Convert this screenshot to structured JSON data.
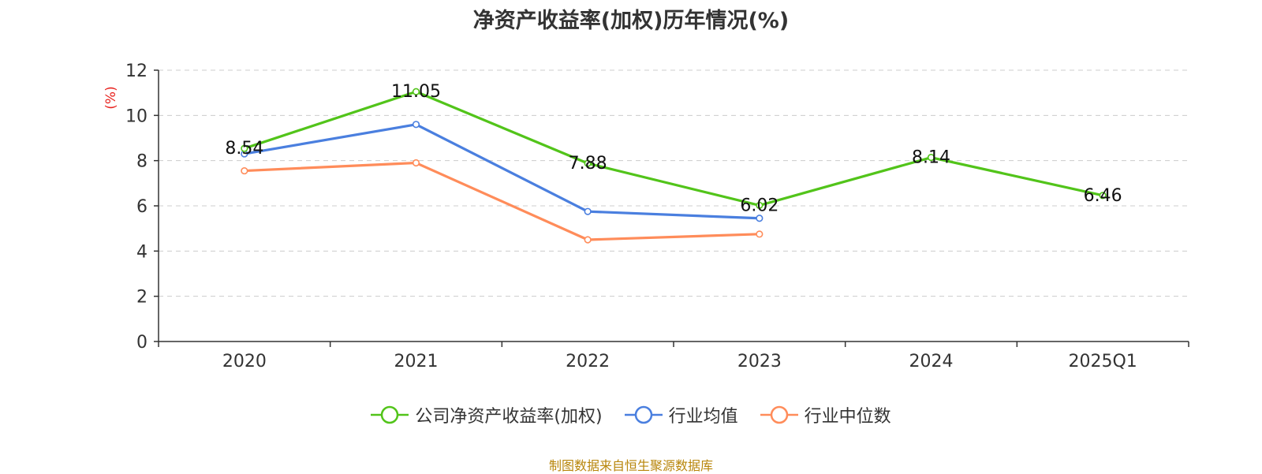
{
  "chart_data": {
    "type": "line",
    "title": "净资产收益率(加权)历年情况(%)",
    "ylabel": "(%)",
    "xlabel": "",
    "categories": [
      "2020",
      "2021",
      "2022",
      "2023",
      "2024",
      "2025Q1"
    ],
    "ylim": [
      0,
      12
    ],
    "yticks": [
      0,
      2,
      4,
      6,
      8,
      10,
      12
    ],
    "grid": "horizontal-dashed",
    "legend_position": "bottom",
    "series": [
      {
        "name": "公司净资产收益率(加权)",
        "values": [
          8.54,
          11.05,
          7.88,
          6.02,
          8.14,
          6.46
        ],
        "color": "#52c41a",
        "show_labels": true
      },
      {
        "name": "行业均值",
        "values": [
          8.3,
          9.6,
          5.75,
          5.45,
          null,
          null
        ],
        "color": "#4a7fdf",
        "show_labels": false
      },
      {
        "name": "行业中位数",
        "values": [
          7.55,
          7.9,
          4.5,
          4.75,
          null,
          null
        ],
        "color": "#ff8c5a",
        "show_labels": false
      }
    ]
  },
  "footer": {
    "source": "制图数据来自恒生聚源数据库"
  }
}
